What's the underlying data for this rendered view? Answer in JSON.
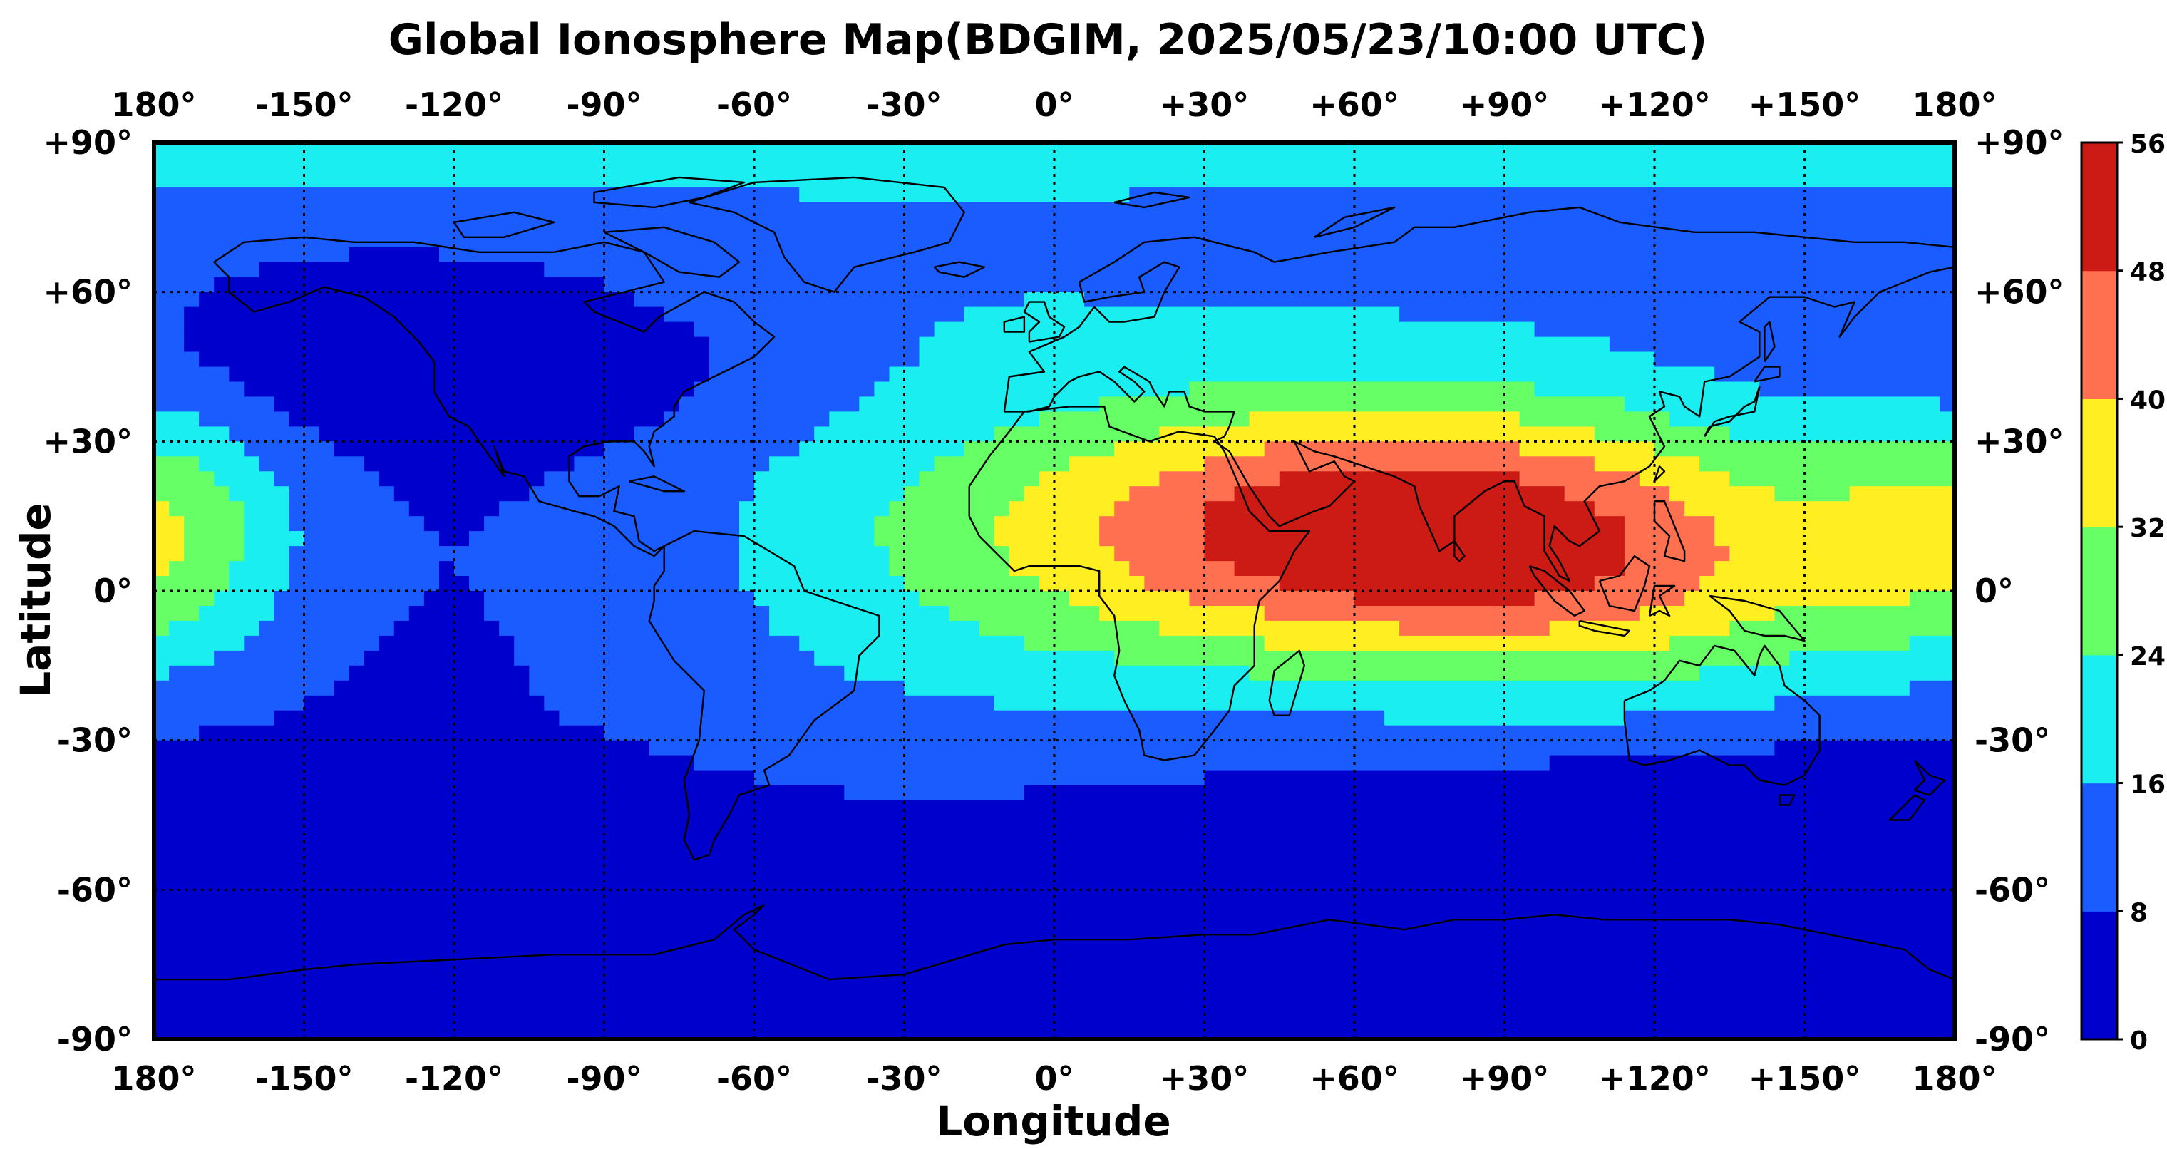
{
  "map_title": "Global Ionosphere Map(BDGIM, 2025/05/23/10:00 UTC)",
  "xlabel": "Longitude",
  "ylabel": "Latitude",
  "lon_ticks": [
    "180°",
    "-150°",
    "-120°",
    "-90°",
    "-60°",
    "-30°",
    "0°",
    "+30°",
    "+60°",
    "+90°",
    "+120°",
    "+150°",
    "180°"
  ],
  "lat_ticks": [
    "+90°",
    "+60°",
    "+30°",
    "0°",
    "-30°",
    "-60°",
    "-90°"
  ],
  "colorbar": {
    "levels": [
      "0",
      "8",
      "16",
      "24",
      "32",
      "40",
      "48",
      "56"
    ],
    "colors": [
      "#0000cc",
      "#1a5cff",
      "#1aeef0",
      "#66ff66",
      "#ffee22",
      "#ff7050",
      "#cc1a14"
    ]
  },
  "chart_data": {
    "type": "heatmap",
    "title": "Global Ionosphere Map(BDGIM, 2025/05/23/10:00 UTC)",
    "xlabel": "Longitude",
    "ylabel": "Latitude",
    "xlim": [
      -180,
      180
    ],
    "ylim": [
      -90,
      90
    ],
    "grid": true,
    "color_scale": {
      "min": 0,
      "max": 56,
      "step": 8
    },
    "features": [
      {
        "level_range": [
          48,
          56
        ],
        "region": "peak over Africa, Middle East, South/Southeast Asia",
        "lon_range": [
          0,
          140
        ],
        "lat_range": [
          -10,
          33
        ]
      },
      {
        "level_range": [
          0,
          8
        ],
        "region": "south Pacific, southern ocean, south of Australia",
        "lon_range": [
          -180,
          180
        ],
        "lat_range": [
          -90,
          -30
        ]
      },
      {
        "level_range": [
          8,
          16
        ],
        "region": "North America / North Pacific",
        "lon_range": [
          -165,
          -60
        ],
        "lat_range": [
          30,
          62
        ]
      },
      {
        "level_range": [
          24,
          32
        ],
        "region": "central Pacific near date line",
        "lon_range": [
          -180,
          -155
        ],
        "lat_range": [
          -10,
          35
        ]
      }
    ]
  }
}
